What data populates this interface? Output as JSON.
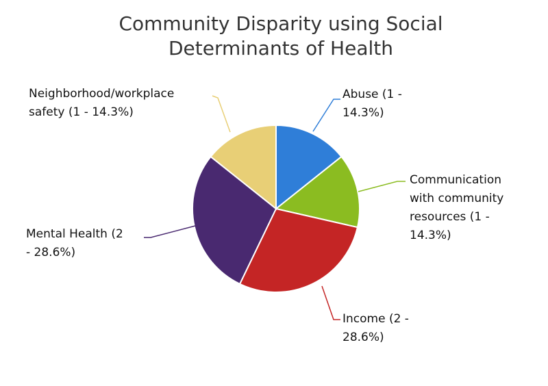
{
  "chart_data": {
    "type": "pie",
    "title": [
      "Community Disparity using Social",
      "Determinants of Health"
    ],
    "start_angle": "top, clockwise",
    "slices": [
      {
        "name": "Abuse",
        "value": 1,
        "percent": 14.3,
        "color": "#2f7ed8",
        "label_lines": [
          "Abuse (1 -",
          "14.3%)"
        ]
      },
      {
        "name": "Communication with community resources",
        "value": 1,
        "percent": 14.3,
        "color": "#8bbc21",
        "label_lines": [
          "Communication",
          "with community",
          "resources (1 -",
          "14.3%)"
        ]
      },
      {
        "name": "Income",
        "value": 2,
        "percent": 28.6,
        "color": "#c42525",
        "label_lines": [
          "Income (2 -",
          "28.6%)"
        ]
      },
      {
        "name": "Mental Health",
        "value": 2,
        "percent": 28.6,
        "color": "#492970",
        "label_lines": [
          "Mental Health (2",
          "- 28.6%)"
        ]
      },
      {
        "name": "Neighborhood/workplace safety",
        "value": 1,
        "percent": 14.3,
        "color": "#e8cf76",
        "label_lines": [
          "Neighborhood/workplace",
          "safety (1 - 14.3%)"
        ]
      }
    ]
  }
}
